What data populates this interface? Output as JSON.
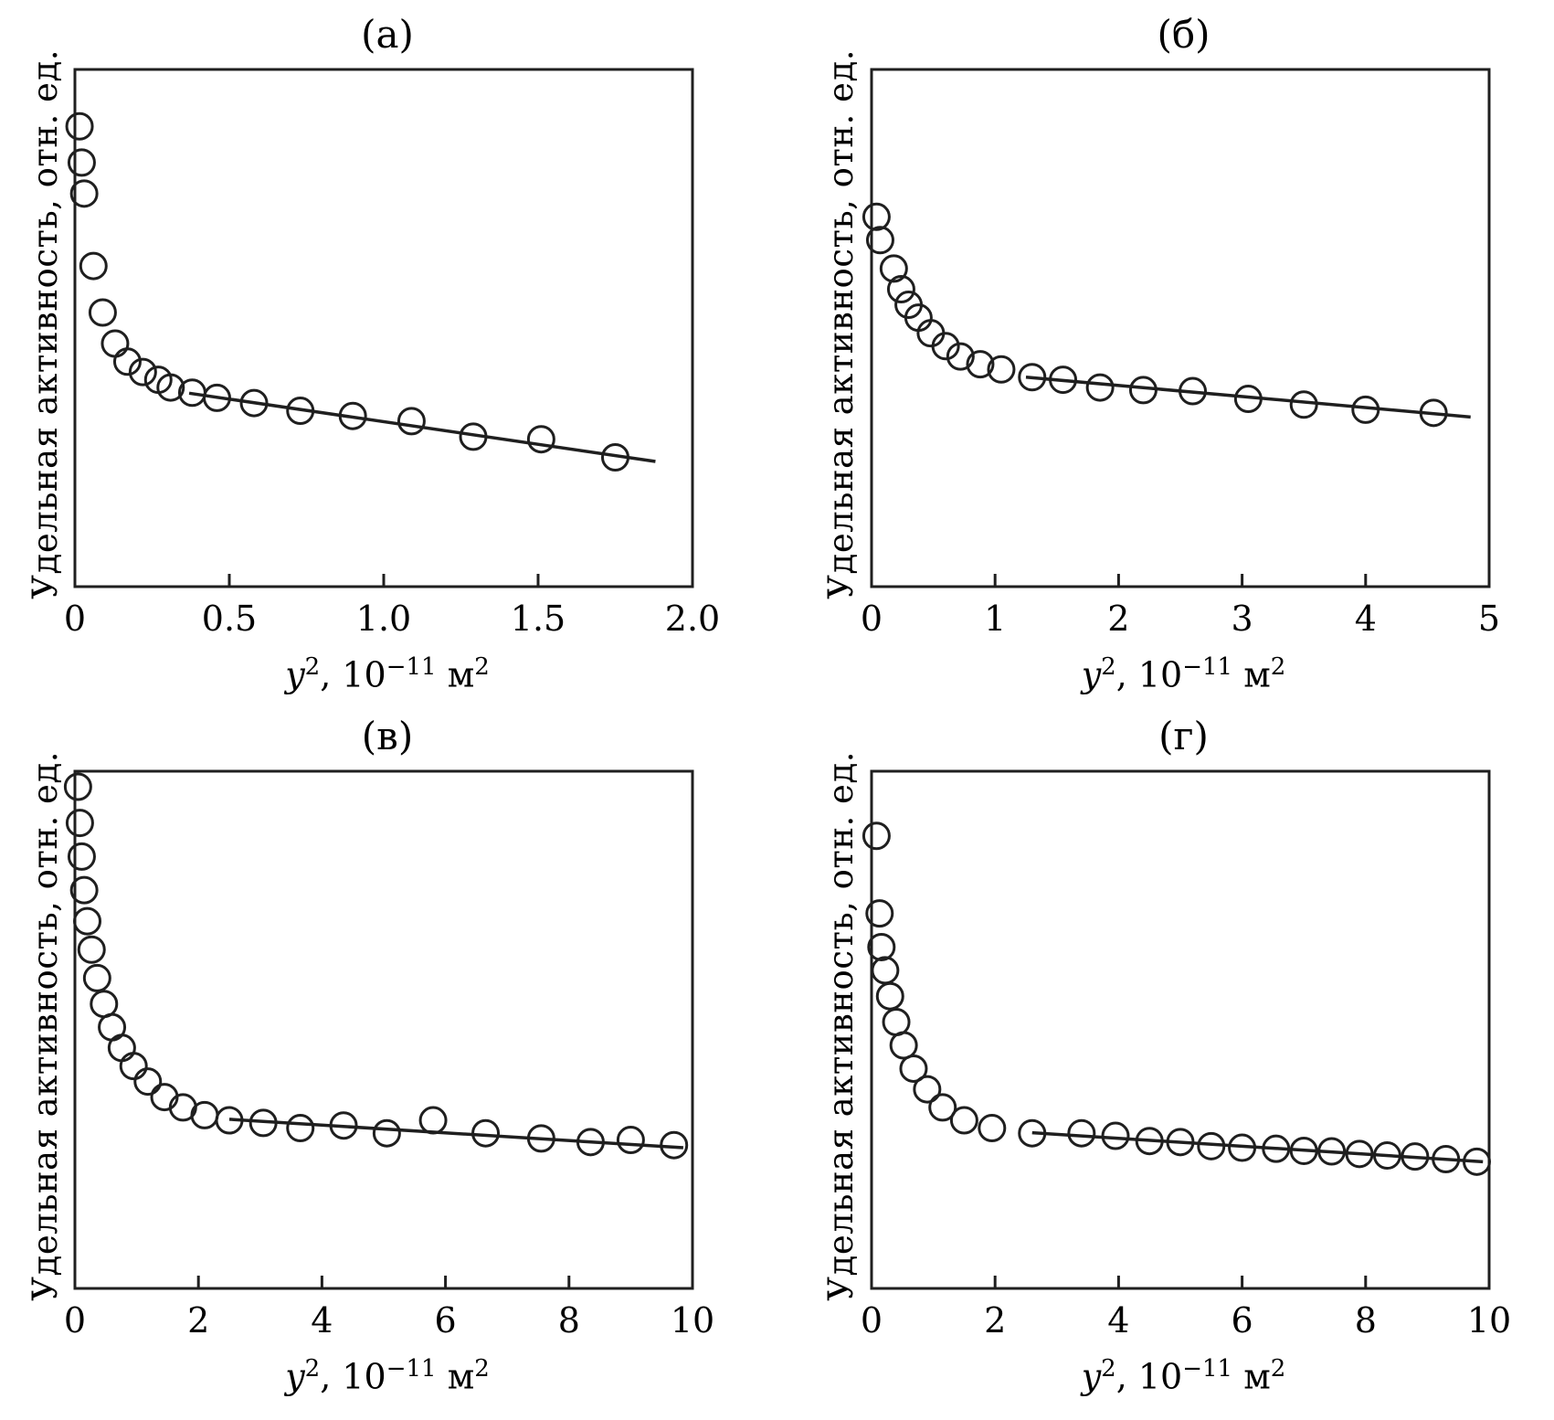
{
  "labels": {
    "ylabel": "Удельная активность, отн. ед.",
    "xlabel": {
      "sym": "y",
      "sym_exp": "2",
      "mid": ", 10",
      "pow": "−11",
      "unit": " м",
      "unit_exp": "2"
    }
  },
  "style": {
    "ink": "#1f1f1f"
  },
  "chart_data": [
    {
      "type": "scatter",
      "title": "(а)",
      "xlabel": "y2, 10−11 м2",
      "ylabel": "Удельная активность, отн. ед.",
      "xlim": [
        0,
        2
      ],
      "ylim": [
        0,
        1
      ],
      "xticks": [
        0,
        0.5,
        1.0,
        1.5,
        2.0
      ],
      "xtick_labels": [
        "0",
        "0.5",
        "1.0",
        "1.5",
        "2.0"
      ],
      "grid": false,
      "marker": "open-circle",
      "points": [
        [
          0.015,
          0.89
        ],
        [
          0.022,
          0.82
        ],
        [
          0.03,
          0.76
        ],
        [
          0.06,
          0.62
        ],
        [
          0.09,
          0.53
        ],
        [
          0.13,
          0.47
        ],
        [
          0.17,
          0.435
        ],
        [
          0.22,
          0.415
        ],
        [
          0.27,
          0.4
        ],
        [
          0.31,
          0.385
        ],
        [
          0.38,
          0.375
        ],
        [
          0.46,
          0.365
        ],
        [
          0.58,
          0.355
        ],
        [
          0.73,
          0.34
        ],
        [
          0.9,
          0.33
        ],
        [
          1.09,
          0.32
        ],
        [
          1.29,
          0.29
        ],
        [
          1.51,
          0.285
        ],
        [
          1.75,
          0.25
        ]
      ],
      "fit_line": {
        "x1": 0.37,
        "y1": 0.374,
        "x2": 1.88,
        "y2": 0.242
      }
    },
    {
      "type": "scatter",
      "title": "(б)",
      "xlabel": "y2, 10−11 м2",
      "ylabel": "Удельная активность, отн. ед.",
      "xlim": [
        0,
        5
      ],
      "ylim": [
        0,
        1
      ],
      "xticks": [
        0,
        1,
        2,
        3,
        4,
        5
      ],
      "xtick_labels": [
        "0",
        "1",
        "2",
        "3",
        "4",
        "5"
      ],
      "grid": false,
      "marker": "open-circle",
      "points": [
        [
          0.04,
          0.715
        ],
        [
          0.07,
          0.67
        ],
        [
          0.18,
          0.615
        ],
        [
          0.24,
          0.575
        ],
        [
          0.3,
          0.545
        ],
        [
          0.38,
          0.52
        ],
        [
          0.48,
          0.49
        ],
        [
          0.6,
          0.465
        ],
        [
          0.72,
          0.445
        ],
        [
          0.88,
          0.43
        ],
        [
          1.05,
          0.42
        ],
        [
          1.3,
          0.405
        ],
        [
          1.55,
          0.4
        ],
        [
          1.85,
          0.385
        ],
        [
          2.2,
          0.38
        ],
        [
          2.6,
          0.378
        ],
        [
          3.05,
          0.363
        ],
        [
          3.5,
          0.352
        ],
        [
          4.0,
          0.342
        ],
        [
          4.55,
          0.336
        ]
      ],
      "fit_line": {
        "x1": 1.25,
        "y1": 0.405,
        "x2": 4.85,
        "y2": 0.328
      }
    },
    {
      "type": "scatter",
      "title": "(в)",
      "xlabel": "y2, 10−11 м2",
      "ylabel": "Удельная активность, отн. ед.",
      "xlim": [
        0,
        10
      ],
      "ylim": [
        0,
        1
      ],
      "xticks": [
        0,
        2,
        4,
        6,
        8,
        10
      ],
      "xtick_labels": [
        "0",
        "2",
        "4",
        "6",
        "8",
        "10"
      ],
      "grid": false,
      "marker": "open-circle",
      "points": [
        [
          0.05,
          0.97
        ],
        [
          0.08,
          0.9
        ],
        [
          0.11,
          0.835
        ],
        [
          0.15,
          0.77
        ],
        [
          0.2,
          0.71
        ],
        [
          0.27,
          0.655
        ],
        [
          0.36,
          0.6
        ],
        [
          0.47,
          0.55
        ],
        [
          0.6,
          0.505
        ],
        [
          0.76,
          0.465
        ],
        [
          0.95,
          0.43
        ],
        [
          1.18,
          0.4
        ],
        [
          1.45,
          0.37
        ],
        [
          1.75,
          0.35
        ],
        [
          2.1,
          0.335
        ],
        [
          2.5,
          0.325
        ],
        [
          3.05,
          0.32
        ],
        [
          3.65,
          0.31
        ],
        [
          4.35,
          0.315
        ],
        [
          5.05,
          0.3
        ],
        [
          5.8,
          0.325
        ],
        [
          6.65,
          0.3
        ],
        [
          7.55,
          0.29
        ],
        [
          8.35,
          0.283
        ],
        [
          9.0,
          0.287
        ],
        [
          9.7,
          0.277
        ]
      ],
      "fit_line": {
        "x1": 2.5,
        "y1": 0.327,
        "x2": 9.85,
        "y2": 0.272
      }
    },
    {
      "type": "scatter",
      "title": "(г)",
      "xlabel": "y2, 10−11 м2",
      "ylabel": "Удельная активность, отн. ед.",
      "xlim": [
        0,
        10
      ],
      "ylim": [
        0,
        1
      ],
      "xticks": [
        0,
        2,
        4,
        6,
        8,
        10
      ],
      "xtick_labels": [
        "0",
        "2",
        "4",
        "6",
        "8",
        "10"
      ],
      "grid": false,
      "marker": "open-circle",
      "points": [
        [
          0.08,
          0.875
        ],
        [
          0.13,
          0.725
        ],
        [
          0.16,
          0.66
        ],
        [
          0.22,
          0.615
        ],
        [
          0.3,
          0.565
        ],
        [
          0.4,
          0.515
        ],
        [
          0.52,
          0.47
        ],
        [
          0.68,
          0.425
        ],
        [
          0.9,
          0.385
        ],
        [
          1.15,
          0.35
        ],
        [
          1.5,
          0.325
        ],
        [
          1.95,
          0.31
        ],
        [
          2.6,
          0.3
        ],
        [
          3.4,
          0.3
        ],
        [
          3.95,
          0.295
        ],
        [
          4.5,
          0.285
        ],
        [
          5.0,
          0.283
        ],
        [
          5.5,
          0.275
        ],
        [
          6.0,
          0.272
        ],
        [
          6.55,
          0.27
        ],
        [
          7.0,
          0.266
        ],
        [
          7.45,
          0.265
        ],
        [
          7.9,
          0.26
        ],
        [
          8.35,
          0.257
        ],
        [
          8.8,
          0.255
        ],
        [
          9.3,
          0.25
        ],
        [
          9.8,
          0.245
        ]
      ],
      "fit_line": {
        "x1": 2.6,
        "y1": 0.301,
        "x2": 9.9,
        "y2": 0.245
      }
    }
  ]
}
